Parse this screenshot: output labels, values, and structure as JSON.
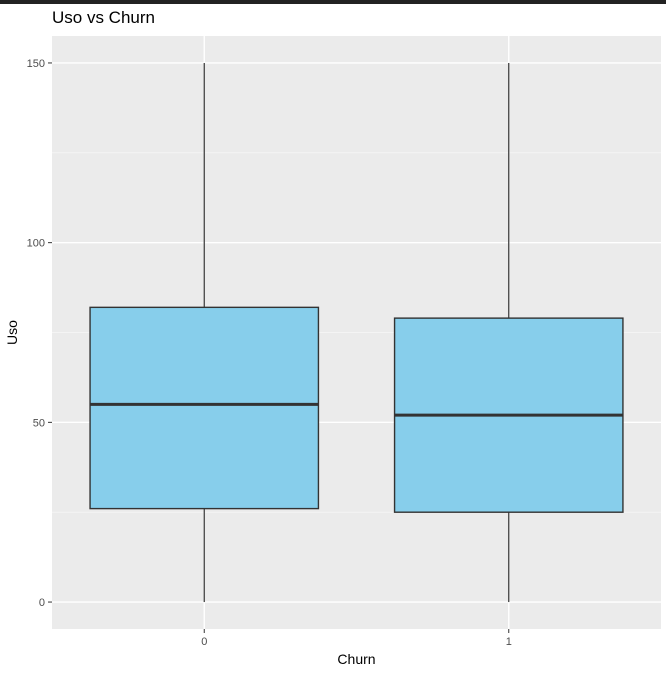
{
  "chart_data": {
    "type": "boxplot",
    "title": "Uso vs Churn",
    "xlabel": "Churn",
    "ylabel": "Uso",
    "categories": [
      "0",
      "1"
    ],
    "ylim": [
      -7.5,
      157.5
    ],
    "y_ticks": [
      0,
      50,
      100,
      150
    ],
    "y_tick_labels": [
      "0",
      "50",
      "100",
      "150"
    ],
    "grid": true,
    "boxes": [
      {
        "category": "0",
        "min": 0,
        "q1": 26,
        "median": 55,
        "q3": 82,
        "max": 150
      },
      {
        "category": "1",
        "min": 0,
        "q1": 25,
        "median": 52,
        "q3": 79,
        "max": 150
      }
    ],
    "colors": {
      "box_fill": "#87CEEB",
      "box_stroke": "#333333",
      "panel_bg": "#EBEBEB",
      "grid_major": "#FFFFFF",
      "grid_minor": "#F4F4F4"
    }
  }
}
